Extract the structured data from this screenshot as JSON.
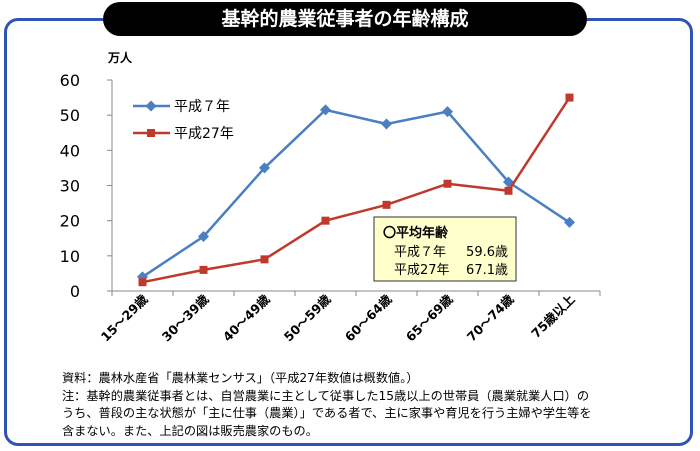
{
  "title": "基幹的農業従事者の年齢構成",
  "chart_data": {
    "type": "line",
    "title": "基幹的農業従事者の年齢構成",
    "ylabel": "万人",
    "xlabel": "",
    "ylim": [
      0,
      60
    ],
    "yticks": [
      0,
      10,
      20,
      30,
      40,
      50,
      60
    ],
    "grid": false,
    "categories": [
      "15～29歳",
      "30～39歳",
      "40～49歳",
      "50～59歳",
      "60～64歳",
      "65～69歳",
      "70～74歳",
      "75歳以上"
    ],
    "series": [
      {
        "name": "平成７年",
        "color": "#4a7fc1",
        "marker": "diamond",
        "values": [
          4,
          15.5,
          35,
          51.5,
          47.5,
          51,
          31,
          19.5
        ]
      },
      {
        "name": "平成27年",
        "color": "#c0392b",
        "marker": "square",
        "values": [
          2.5,
          6,
          9,
          20,
          24.5,
          30.5,
          28.5,
          55
        ]
      }
    ],
    "legend_position": "top-left",
    "annotation": {
      "heading": "〇平均年齢",
      "rows": [
        {
          "label": "平成７年",
          "value": "59.6歳"
        },
        {
          "label": "平成27年",
          "value": "67.1歳"
        }
      ]
    }
  },
  "notes": [
    "資料：農林水産省「農林業センサス」（平成27年数値は概数値。）",
    "注：基幹的農業従事者とは、自営農業に主として従事した15歳以上の世帯員（農業就業人口）の",
    "うち、普段の主な状態が「主に仕事（農業）」である者で、主に家事や育児を行う主婦や学生等を",
    "含まない。また、上記の図は販売農家のもの。"
  ]
}
